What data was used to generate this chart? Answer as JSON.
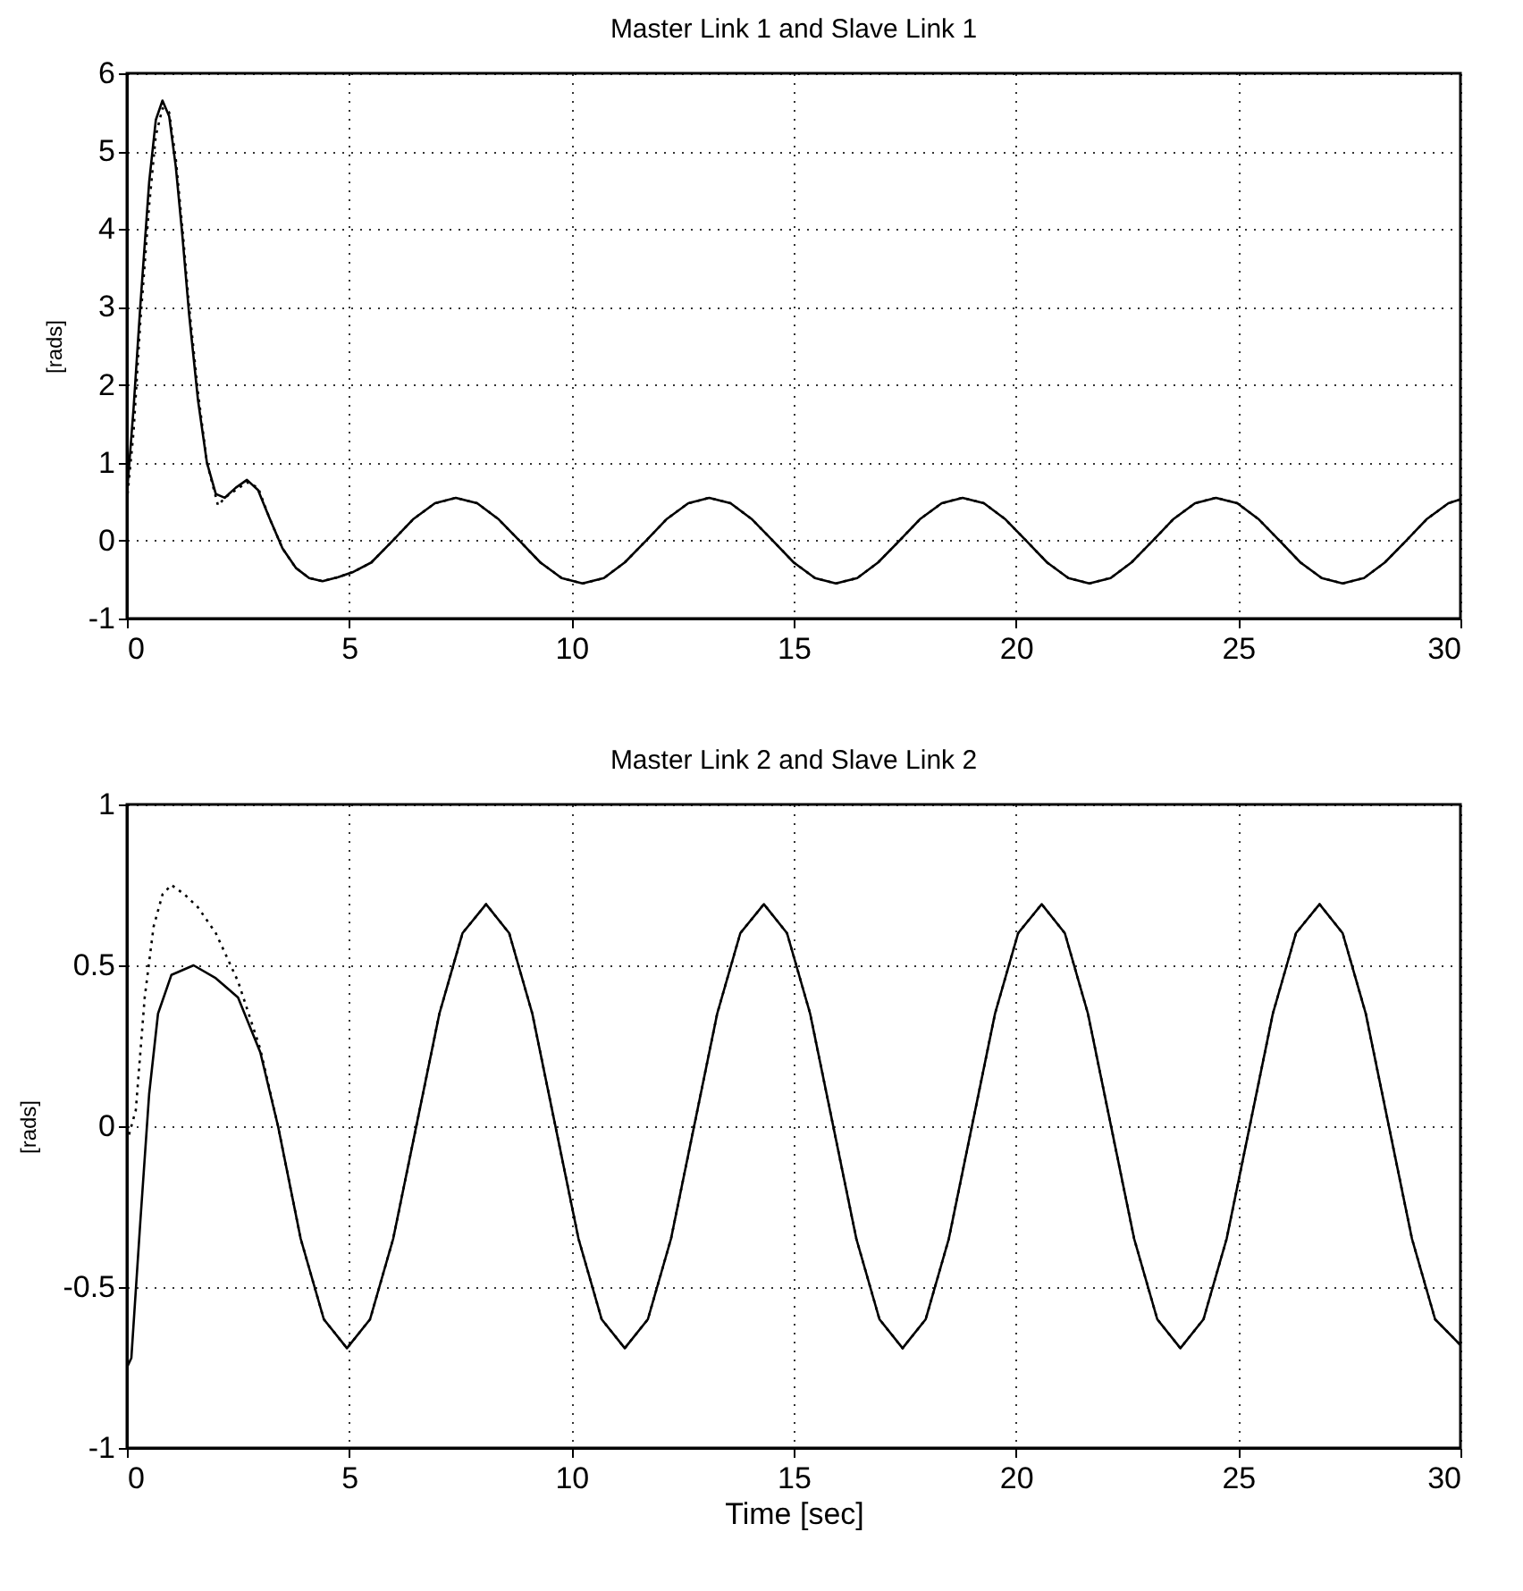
{
  "chart_data": [
    {
      "type": "line",
      "title": "Master Link 1 and Slave Link 1",
      "ylabel": "[rads]",
      "xlim": [
        0,
        30
      ],
      "xticks": [
        0,
        5,
        10,
        15,
        20,
        25,
        30
      ],
      "ylim": [
        -1,
        6
      ],
      "yticks": [
        -1,
        0,
        1,
        2,
        3,
        4,
        5,
        6
      ],
      "grid": true,
      "series": [
        {
          "color": "#000000",
          "line_style": "solid",
          "x": [
            0,
            0.15,
            0.3,
            0.5,
            0.65,
            0.8,
            0.95,
            1.1,
            1.25,
            1.4,
            1.6,
            1.8,
            2.0,
            2.2,
            2.45,
            2.7,
            2.95,
            3.2,
            3.5,
            3.8,
            4.1,
            4.4,
            4.75,
            5.1,
            5.5,
            5.98,
            6.45,
            6.93,
            7.4,
            7.88,
            8.35,
            8.83,
            9.3,
            9.78,
            10.25,
            10.73,
            11.2,
            11.68,
            12.15,
            12.63,
            13.1,
            13.58,
            14.05,
            14.53,
            15.0,
            15.48,
            15.95,
            16.43,
            16.9,
            17.38,
            17.85,
            18.33,
            18.8,
            19.28,
            19.75,
            20.23,
            20.7,
            21.18,
            21.65,
            22.13,
            22.6,
            23.08,
            23.55,
            24.03,
            24.5,
            24.98,
            25.45,
            25.93,
            26.4,
            26.88,
            27.35,
            27.83,
            28.3,
            28.78,
            29.25,
            29.73,
            30
          ],
          "values": [
            0.6,
            1.7,
            3.0,
            4.6,
            5.4,
            5.65,
            5.45,
            4.8,
            3.9,
            2.9,
            1.8,
            1.0,
            0.6,
            0.55,
            0.68,
            0.78,
            0.65,
            0.3,
            -0.1,
            -0.35,
            -0.48,
            -0.52,
            -0.47,
            -0.4,
            -0.28,
            0,
            0.28,
            0.48,
            0.55,
            0.48,
            0.28,
            0,
            -0.28,
            -0.48,
            -0.55,
            -0.48,
            -0.28,
            0,
            0.28,
            0.48,
            0.55,
            0.48,
            0.28,
            0,
            -0.28,
            -0.48,
            -0.55,
            -0.48,
            -0.28,
            0,
            0.28,
            0.48,
            0.55,
            0.48,
            0.28,
            0,
            -0.28,
            -0.48,
            -0.55,
            -0.48,
            -0.28,
            0,
            0.28,
            0.48,
            0.55,
            0.48,
            0.28,
            0,
            -0.28,
            -0.48,
            -0.55,
            -0.48,
            -0.28,
            0,
            0.28,
            0.48,
            0.53
          ]
        },
        {
          "color": "#000000",
          "line_style": "dotted",
          "x": [
            0,
            0.15,
            0.3,
            0.5,
            0.65,
            0.8,
            0.95,
            1.1,
            1.25,
            1.4,
            1.6,
            1.8,
            2.05,
            2.2,
            2.45,
            2.7,
            2.95,
            3.2,
            3.5,
            3.8,
            4.1,
            4.4,
            4.75,
            5.1,
            5.5,
            5.98,
            6.45,
            6.93,
            7.4,
            7.88,
            8.35,
            8.83,
            9.3,
            9.78,
            10.25,
            10.73,
            11.2,
            11.68,
            12.15,
            12.63,
            13.1,
            13.58,
            14.05,
            14.53,
            15.0,
            15.48,
            15.95,
            16.43,
            16.9,
            17.38,
            17.85,
            18.33,
            18.8,
            19.28,
            19.75,
            20.23,
            20.7,
            21.18,
            21.65,
            22.13,
            22.6,
            23.08,
            23.55,
            24.03,
            24.5,
            24.98,
            25.45,
            25.93,
            26.4,
            26.88,
            27.35,
            27.83,
            28.3,
            28.78,
            29.25,
            29.73,
            30
          ],
          "values": [
            0.5,
            1.4,
            2.8,
            4.3,
            5.2,
            5.55,
            5.5,
            4.9,
            4.0,
            3.0,
            1.9,
            1.0,
            0.45,
            0.55,
            0.65,
            0.75,
            0.68,
            0.3,
            -0.1,
            -0.35,
            -0.48,
            -0.52,
            -0.47,
            -0.4,
            -0.28,
            0,
            0.28,
            0.48,
            0.55,
            0.48,
            0.28,
            0,
            -0.28,
            -0.48,
            -0.55,
            -0.48,
            -0.28,
            0,
            0.28,
            0.48,
            0.55,
            0.48,
            0.28,
            0,
            -0.28,
            -0.48,
            -0.55,
            -0.48,
            -0.28,
            0,
            0.28,
            0.48,
            0.55,
            0.48,
            0.28,
            0,
            -0.28,
            -0.48,
            -0.55,
            -0.48,
            -0.28,
            0,
            0.28,
            0.48,
            0.55,
            0.48,
            0.28,
            0,
            -0.28,
            -0.48,
            -0.55,
            -0.48,
            -0.28,
            0,
            0.28,
            0.48,
            0.53
          ]
        }
      ]
    },
    {
      "type": "line",
      "title": "Master Link 2 and Slave Link 2",
      "xlabel": "Time [sec]",
      "ylabel": "[rads]",
      "xlim": [
        0,
        30
      ],
      "xticks": [
        0,
        5,
        10,
        15,
        20,
        25,
        30
      ],
      "ylim": [
        -1,
        1
      ],
      "yticks": [
        -1,
        -0.5,
        0,
        0.5,
        1
      ],
      "grid": true,
      "series": [
        {
          "color": "#000000",
          "line_style": "solid",
          "x": [
            0,
            0.1,
            0.3,
            0.5,
            0.7,
            1.0,
            1.5,
            2.0,
            2.5,
            3.0,
            3.4,
            3.91,
            4.43,
            4.95,
            5.47,
            5.99,
            6.51,
            7.03,
            7.55,
            8.08,
            8.6,
            9.12,
            9.64,
            10.16,
            10.68,
            11.2,
            11.72,
            12.24,
            12.76,
            13.28,
            13.8,
            14.33,
            14.85,
            15.37,
            15.89,
            16.41,
            16.93,
            17.45,
            17.97,
            18.49,
            19.01,
            19.53,
            20.05,
            20.58,
            21.1,
            21.62,
            22.14,
            22.66,
            23.18,
            23.7,
            24.22,
            24.74,
            25.26,
            25.78,
            26.3,
            26.83,
            27.35,
            27.87,
            28.39,
            28.91,
            29.43,
            30
          ],
          "values": [
            -0.75,
            -0.72,
            -0.3,
            0.1,
            0.35,
            0.47,
            0.5,
            0.46,
            0.4,
            0.23,
            0,
            -0.35,
            -0.6,
            -0.69,
            -0.6,
            -0.35,
            0,
            0.35,
            0.6,
            0.69,
            0.6,
            0.35,
            0,
            -0.35,
            -0.6,
            -0.69,
            -0.6,
            -0.35,
            0,
            0.35,
            0.6,
            0.69,
            0.6,
            0.35,
            0,
            -0.35,
            -0.6,
            -0.69,
            -0.6,
            -0.35,
            0,
            0.35,
            0.6,
            0.69,
            0.6,
            0.35,
            0,
            -0.35,
            -0.6,
            -0.69,
            -0.6,
            -0.35,
            0,
            0.35,
            0.6,
            0.69,
            0.6,
            0.35,
            0,
            -0.35,
            -0.6,
            -0.68
          ]
        },
        {
          "color": "#000000",
          "line_style": "dotted",
          "x": [
            0,
            0.2,
            0.4,
            0.6,
            0.8,
            1.0,
            1.3,
            1.6,
            2.0,
            2.5,
            3.0,
            3.4,
            3.91,
            4.43,
            4.95,
            5.47,
            5.99,
            6.51,
            7.03,
            7.55,
            8.08,
            8.6,
            9.12,
            9.64,
            10.16,
            10.68,
            11.2,
            11.72,
            12.24,
            12.76,
            13.28,
            13.8,
            14.33,
            14.85,
            15.37,
            15.89,
            16.41,
            16.93,
            17.45,
            17.97,
            18.49,
            19.01,
            19.53,
            20.05,
            20.58,
            21.1,
            21.62,
            22.14,
            22.66,
            23.18,
            23.7,
            24.22,
            24.74,
            25.26,
            25.78,
            26.3,
            26.83,
            27.35,
            27.87,
            28.39,
            28.91,
            29.43,
            30
          ],
          "values": [
            -0.05,
            0.05,
            0.4,
            0.62,
            0.72,
            0.75,
            0.72,
            0.68,
            0.6,
            0.45,
            0.24,
            0,
            -0.35,
            -0.6,
            -0.69,
            -0.6,
            -0.35,
            0,
            0.35,
            0.6,
            0.69,
            0.6,
            0.35,
            0,
            -0.35,
            -0.6,
            -0.69,
            -0.6,
            -0.35,
            0,
            0.35,
            0.6,
            0.69,
            0.6,
            0.35,
            0,
            -0.35,
            -0.6,
            -0.69,
            -0.6,
            -0.35,
            0,
            0.35,
            0.6,
            0.69,
            0.6,
            0.35,
            0,
            -0.35,
            -0.6,
            -0.69,
            -0.6,
            -0.35,
            0,
            0.35,
            0.6,
            0.69,
            0.6,
            0.35,
            0,
            -0.35,
            -0.6,
            -0.68
          ]
        }
      ]
    }
  ]
}
